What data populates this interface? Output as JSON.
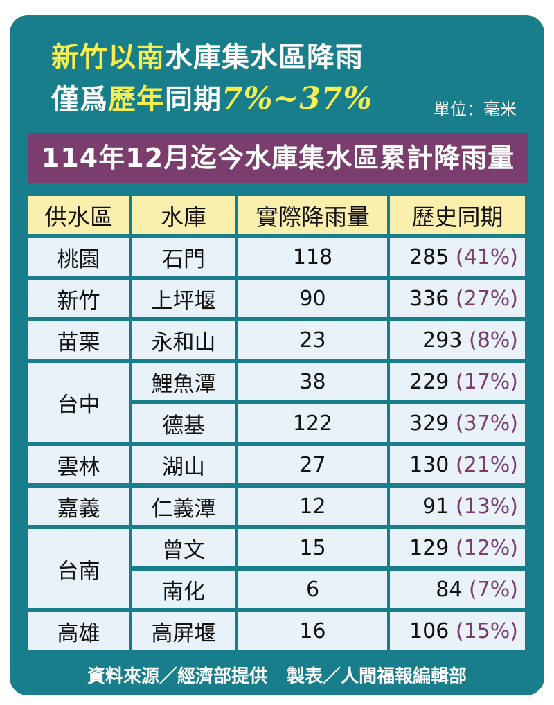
{
  "title": {
    "line1_highlight": "新竹以南",
    "line1_rest": "水庫集水區降雨",
    "line2_a": "僅爲",
    "line2_highlight": "歷年",
    "line2_b": "同期",
    "line2_pct": "7%~37%"
  },
  "unit": "單位：毫米",
  "banner": "114年12月迄今水庫集水區累計降雨量",
  "table": {
    "headers": [
      "供水區",
      "水庫",
      "實際降雨量",
      "歷史同期"
    ],
    "rows": [
      {
        "region": "桃園",
        "reservoir": "石門",
        "actual": "118",
        "hist": "285",
        "pct": "(41%)"
      },
      {
        "region": "新竹",
        "reservoir": "上坪堰",
        "actual": "90",
        "hist": "336",
        "pct": "(27%)"
      },
      {
        "region": "苗栗",
        "reservoir": "永和山",
        "actual": "23",
        "hist": "293",
        "pct": "(8%)"
      },
      {
        "region": "台中",
        "reservoir": "鯉魚潭",
        "actual": "38",
        "hist": "229",
        "pct": "(17%)"
      },
      {
        "region": "",
        "reservoir": "德基",
        "actual": "122",
        "hist": "329",
        "pct": "(37%)"
      },
      {
        "region": "雲林",
        "reservoir": "湖山",
        "actual": "27",
        "hist": "130",
        "pct": "(21%)"
      },
      {
        "region": "嘉義",
        "reservoir": "仁義潭",
        "actual": "12",
        "hist": "91",
        "pct": "(13%)"
      },
      {
        "region": "台南",
        "reservoir": "曾文",
        "actual": "15",
        "hist": "129",
        "pct": "(12%)"
      },
      {
        "region": "",
        "reservoir": "南化",
        "actual": "6",
        "hist": "84",
        "pct": "(7%)"
      },
      {
        "region": "高雄",
        "reservoir": "高屏堰",
        "actual": "16",
        "hist": "106",
        "pct": "(15%)"
      }
    ]
  },
  "footer": {
    "source": "資料來源／經濟部提供",
    "credit": "製表／人間福報編輯部"
  },
  "colors": {
    "background": "#187e8c",
    "highlight": "#f5ee52",
    "banner": "#7a3d6e",
    "header_cell": "#fbefae",
    "body_cell": "#e9f2f9"
  }
}
